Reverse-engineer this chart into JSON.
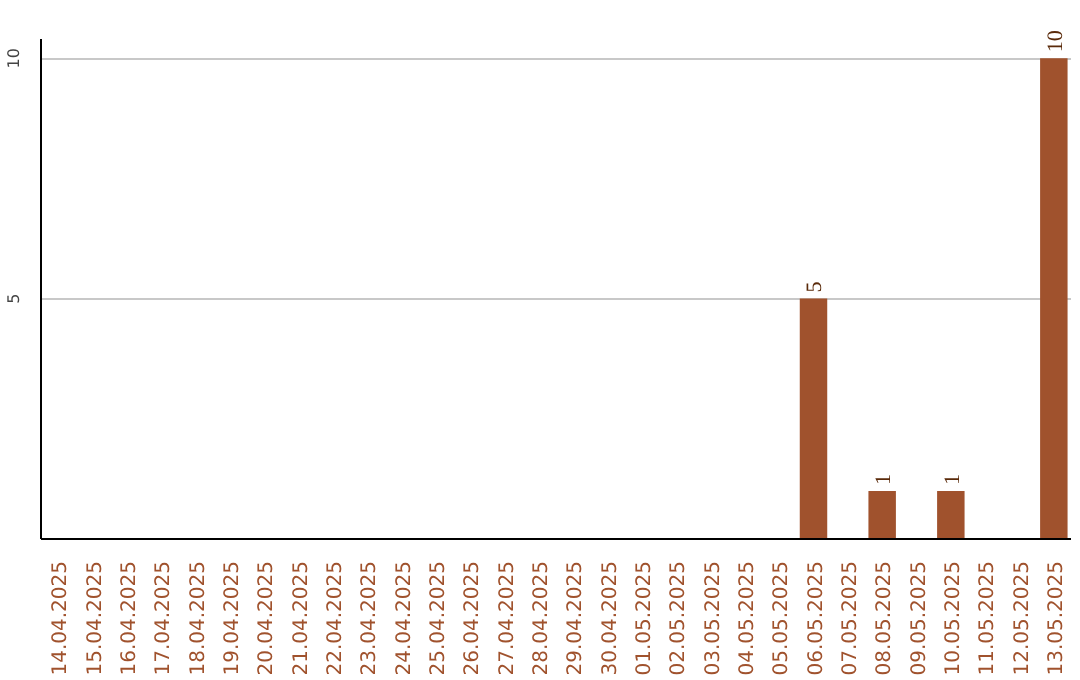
{
  "chart_data": {
    "type": "bar",
    "categories": [
      "14.04.2025",
      "15.04.2025",
      "16.04.2025",
      "17.04.2025",
      "18.04.2025",
      "19.04.2025",
      "20.04.2025",
      "21.04.2025",
      "22.04.2025",
      "23.04.2025",
      "24.04.2025",
      "25.04.2025",
      "26.04.2025",
      "27.04.2025",
      "28.04.2025",
      "29.04.2025",
      "30.04.2025",
      "01.05.2025",
      "02.05.2025",
      "03.05.2025",
      "04.05.2025",
      "05.05.2025",
      "06.05.2025",
      "07.05.2025",
      "08.05.2025",
      "09.05.2025",
      "10.05.2025",
      "11.05.2025",
      "12.05.2025",
      "13.05.2025"
    ],
    "values": [
      0,
      0,
      0,
      0,
      0,
      0,
      0,
      0,
      0,
      0,
      0,
      0,
      0,
      0,
      0,
      0,
      0,
      0,
      0,
      0,
      0,
      0,
      5,
      0,
      1,
      0,
      1,
      0,
      0,
      10
    ],
    "value_labels": [
      null,
      null,
      null,
      null,
      null,
      null,
      null,
      null,
      null,
      null,
      null,
      null,
      null,
      null,
      null,
      null,
      null,
      null,
      null,
      null,
      null,
      null,
      "5",
      null,
      "1",
      null,
      "1",
      null,
      null,
      "10"
    ],
    "color": "#a0522d",
    "ylim": [
      0,
      10.4
    ],
    "yticks": [
      5,
      10
    ],
    "grid": "y"
  }
}
